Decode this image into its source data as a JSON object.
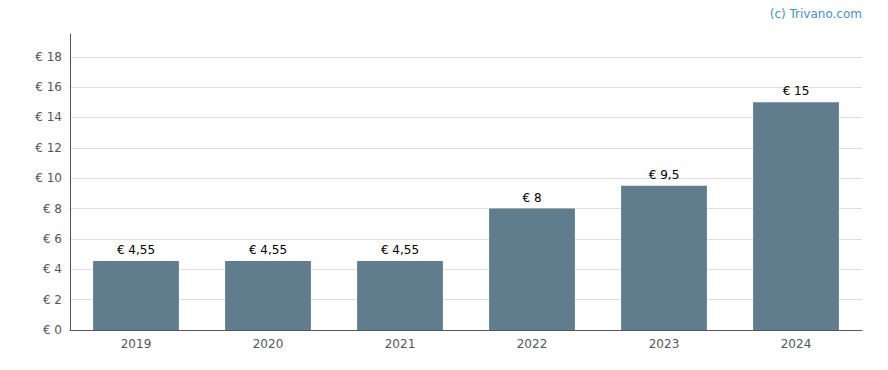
{
  "chart_data": {
    "type": "bar",
    "categories": [
      "2019",
      "2020",
      "2021",
      "2022",
      "2023",
      "2024"
    ],
    "values": [
      4.55,
      4.55,
      4.55,
      8.0,
      9.5,
      15.0
    ],
    "value_labels": [
      "€ 4,55",
      "€ 4,55",
      "€ 4,55",
      "€ 8",
      "€ 9,5",
      "€ 15"
    ],
    "data_labels": true,
    "color": "#5f7d8c",
    "ylim": [
      0,
      19.5
    ],
    "yticks": [
      {
        "value": 0,
        "label": "€ 0"
      },
      {
        "value": 2,
        "label": "€ 2"
      },
      {
        "value": 4,
        "label": "€ 4"
      },
      {
        "value": 6,
        "label": "€ 6"
      },
      {
        "value": 8,
        "label": "€ 8"
      },
      {
        "value": 10,
        "label": "€ 10"
      },
      {
        "value": 12,
        "label": "€ 12"
      },
      {
        "value": 14,
        "label": "€ 14"
      },
      {
        "value": 16,
        "label": "€ 16"
      },
      {
        "value": 18,
        "label": "€ 18"
      }
    ],
    "grid": true,
    "annotations": [
      "(c) Trivano.com"
    ]
  }
}
